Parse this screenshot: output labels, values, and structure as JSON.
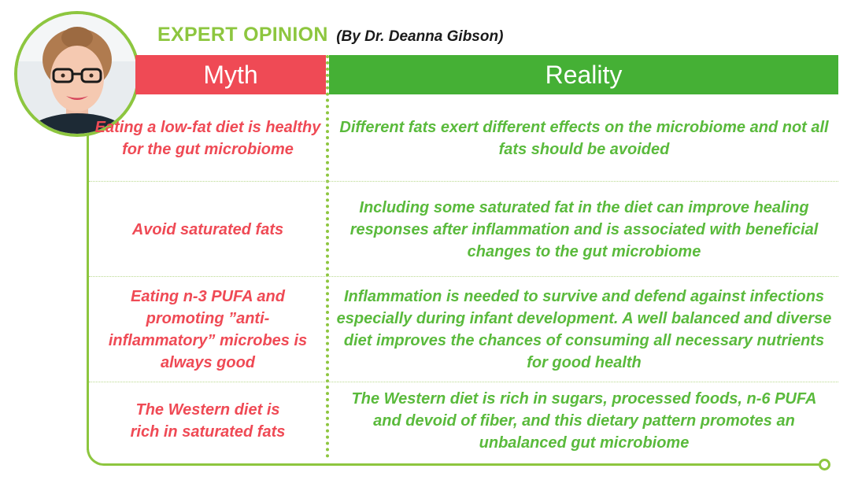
{
  "header": {
    "title": "EXPERT OPINION",
    "byline": "(By Dr. Deanna Gibson)"
  },
  "columns": {
    "myth": "Myth",
    "reality": "Reality"
  },
  "rows": [
    {
      "myth": "Eating a low-fat diet is healthy for the gut microbiome",
      "reality": "Different fats exert different effects on the microbiome and not all fats should be avoided"
    },
    {
      "myth": "Avoid saturated fats",
      "reality": "Including some saturated fat in the diet can improve healing responses after inflammation and is associated with beneficial changes to the gut microbiome"
    },
    {
      "myth": "Eating n-3 PUFA and promoting ”anti-inflammatory” microbes is always good",
      "reality": "Inflammation is needed to survive and defend against infections especially during infant development. A well balanced and diverse diet improves the chances of consuming all necessary nutrients for good health"
    },
    {
      "myth": "The Western diet is rich in saturated fats",
      "reality": "The Western diet is rich in sugars, processed foods, n-6 PUFA and devoid of fiber, and this dietary pattern promotes an unbalanced gut microbiome"
    }
  ],
  "colors": {
    "accent_green": "#8dc63f",
    "reality_header": "#45b035",
    "myth_red": "#ef4a55",
    "reality_text": "#5aba3c"
  },
  "icons": {
    "avatar": "expert-portrait"
  }
}
